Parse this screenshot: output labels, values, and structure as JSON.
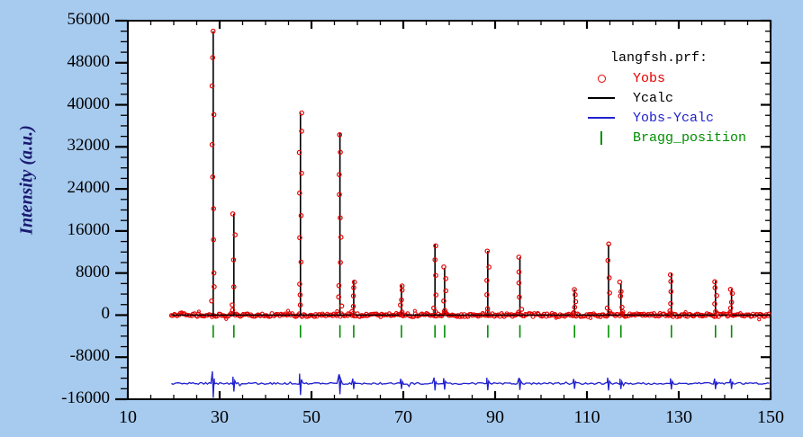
{
  "window": {
    "background": "#a7cbef"
  },
  "y_axis_title": "Intensity (a.u.)",
  "legend": {
    "title": "langfsh.prf:",
    "items": [
      {
        "label": "Yobs",
        "color": "#e60000",
        "marker": "open-circle"
      },
      {
        "label": "Ycalc",
        "color": "#000000",
        "marker": "line"
      },
      {
        "label": "Yobs-Ycalc",
        "color": "#2121ce",
        "marker": "line"
      },
      {
        "label": "Bragg_position",
        "color": "#008f00",
        "marker": "vertical-tick"
      }
    ]
  },
  "chart_data": {
    "type": "line",
    "title": "langfsh.prf:",
    "xlabel": "",
    "ylabel": "Intensity (a.u.)",
    "xlim": [
      10,
      150
    ],
    "ylim": [
      -16000,
      56000
    ],
    "x_major_ticks": [
      10,
      30,
      50,
      70,
      90,
      110,
      130,
      150
    ],
    "x_minor_step": 5,
    "y_major_ticks": [
      -16000,
      -8000,
      0,
      8000,
      16000,
      24000,
      32000,
      40000,
      48000,
      56000
    ],
    "y_minor_step": 2000,
    "grid": false,
    "legend_position": "top-right",
    "plot_bg": "#ffffff",
    "frame_color": "#000000",
    "data_x_range": [
      19.5,
      150.0
    ],
    "observed_baseline": 0,
    "difference_baseline": -13000,
    "bragg_tick_y_range": [
      -1900,
      -4300
    ],
    "colors": {
      "yobs": "#e60000",
      "ycalc": "#000000",
      "diff": "#2121ce",
      "bragg": "#008f00"
    },
    "series": [
      {
        "name": "Yobs",
        "style": "open-circles",
        "color": "#e60000"
      },
      {
        "name": "Ycalc",
        "style": "line",
        "color": "#000000"
      },
      {
        "name": "Yobs-Ycalc",
        "style": "line",
        "color": "#2121ce"
      },
      {
        "name": "Bragg_position",
        "style": "vertical-ticks",
        "color": "#008f00"
      }
    ],
    "peaks": [
      {
        "two_theta": 28.6,
        "intensity": 54000
      },
      {
        "two_theta": 33.1,
        "intensity": 19300
      },
      {
        "two_theta": 47.6,
        "intensity": 38500
      },
      {
        "two_theta": 56.2,
        "intensity": 34600
      },
      {
        "two_theta": 59.2,
        "intensity": 6600
      },
      {
        "two_theta": 69.6,
        "intensity": 5700
      },
      {
        "two_theta": 76.9,
        "intensity": 13500
      },
      {
        "two_theta": 79.0,
        "intensity": 9000
      },
      {
        "two_theta": 88.4,
        "intensity": 12200
      },
      {
        "two_theta": 95.4,
        "intensity": 11000
      },
      {
        "two_theta": 107.3,
        "intensity": 4900
      },
      {
        "two_theta": 114.7,
        "intensity": 13400
      },
      {
        "two_theta": 117.4,
        "intensity": 6100
      },
      {
        "two_theta": 128.4,
        "intensity": 8000
      },
      {
        "two_theta": 138.0,
        "intensity": 6500
      },
      {
        "two_theta": 141.5,
        "intensity": 5000
      }
    ],
    "bragg_positions": [
      28.6,
      33.1,
      47.6,
      56.2,
      59.2,
      69.6,
      76.9,
      79.0,
      88.4,
      95.4,
      107.3,
      114.7,
      117.4,
      128.4,
      138.0,
      141.5
    ]
  }
}
